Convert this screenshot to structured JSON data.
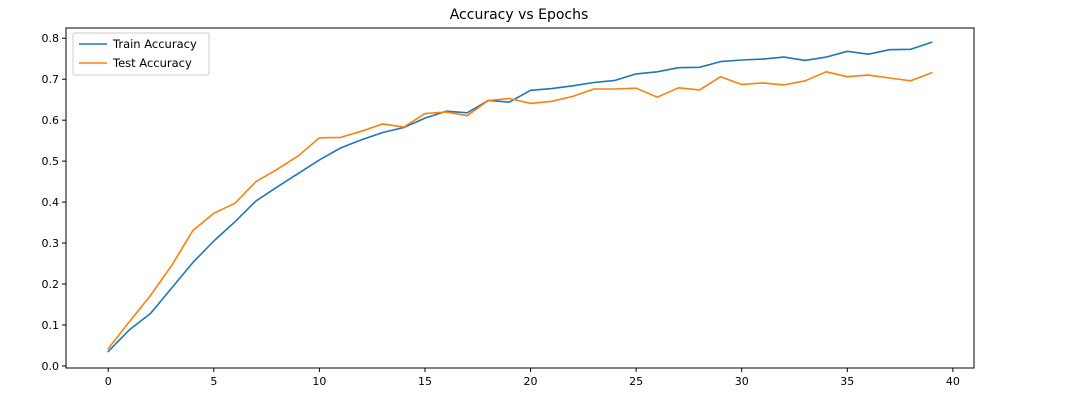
{
  "chart_data": {
    "type": "line",
    "title": "Accuracy vs Epochs",
    "xlabel": "",
    "ylabel": "",
    "xlim": [
      -2,
      41
    ],
    "ylim": [
      -0.005,
      0.825
    ],
    "xticks": [
      0,
      5,
      10,
      15,
      20,
      25,
      30,
      35,
      40
    ],
    "yticks": [
      0.0,
      0.1,
      0.2,
      0.3,
      0.4,
      0.5,
      0.6,
      0.7,
      0.8
    ],
    "ytick_labels": [
      "0.0",
      "0.1",
      "0.2",
      "0.3",
      "0.4",
      "0.5",
      "0.6",
      "0.7",
      "0.8"
    ],
    "grid": false,
    "legend_position": "top-left",
    "x": [
      0,
      1,
      2,
      3,
      4,
      5,
      6,
      7,
      8,
      9,
      10,
      11,
      12,
      13,
      14,
      15,
      16,
      17,
      18,
      19,
      20,
      21,
      22,
      23,
      24,
      25,
      26,
      27,
      28,
      29,
      30,
      31,
      32,
      33,
      34,
      35,
      36,
      37,
      38,
      39
    ],
    "series": [
      {
        "name": "Train Accuracy",
        "color": "#1f77b4",
        "values": [
          0.035,
          0.088,
          0.128,
          0.19,
          0.252,
          0.305,
          0.352,
          0.403,
          0.437,
          0.47,
          0.503,
          0.532,
          0.552,
          0.57,
          0.582,
          0.605,
          0.622,
          0.618,
          0.648,
          0.644,
          0.673,
          0.677,
          0.684,
          0.692,
          0.697,
          0.713,
          0.718,
          0.728,
          0.729,
          0.743,
          0.747,
          0.749,
          0.754,
          0.746,
          0.754,
          0.768,
          0.761,
          0.772,
          0.773,
          0.79
        ]
      },
      {
        "name": "Test Accuracy",
        "color": "#ff7f0e",
        "values": [
          0.042,
          0.108,
          0.172,
          0.245,
          0.33,
          0.373,
          0.397,
          0.45,
          0.48,
          0.513,
          0.557,
          0.558,
          0.573,
          0.591,
          0.583,
          0.616,
          0.62,
          0.611,
          0.648,
          0.653,
          0.641,
          0.646,
          0.658,
          0.676,
          0.676,
          0.678,
          0.656,
          0.679,
          0.674,
          0.706,
          0.687,
          0.691,
          0.686,
          0.696,
          0.718,
          0.706,
          0.71,
          0.703,
          0.696,
          0.716
        ]
      }
    ]
  }
}
